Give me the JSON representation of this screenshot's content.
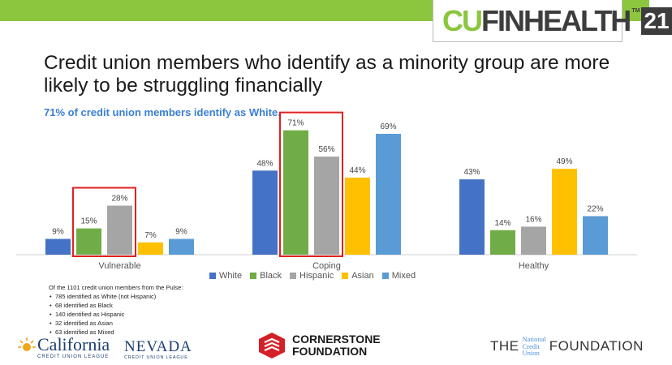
{
  "brand": {
    "cu": "CU",
    "fin": "FINHEALTH",
    "tm": "TM",
    "year": "21"
  },
  "title": "Credit union members who identify as a minority group are more likely to be struggling financially",
  "subtitle": "71% of credit union members identify as White.",
  "chart_data": {
    "type": "bar",
    "categories": [
      "Vulnerable",
      "Coping",
      "Healthy"
    ],
    "series": [
      {
        "name": "White",
        "color": "#4472c4",
        "values": [
          9,
          48,
          43
        ],
        "labels": [
          "9%",
          "48%",
          "43%"
        ]
      },
      {
        "name": "Black",
        "color": "#70ad47",
        "values": [
          15,
          71,
          14
        ],
        "labels": [
          "15%",
          "71%",
          "14%"
        ]
      },
      {
        "name": "Hispanic",
        "color": "#a5a5a5",
        "values": [
          28,
          56,
          16
        ],
        "labels": [
          "28%",
          "56%",
          "16%"
        ]
      },
      {
        "name": "Asian",
        "color": "#ffc000",
        "values": [
          7,
          44,
          49
        ],
        "labels": [
          "7%",
          "44%",
          "49%"
        ]
      },
      {
        "name": "Mixed",
        "color": "#5b9bd5",
        "values": [
          9,
          69,
          22
        ],
        "labels": [
          "9%",
          "69%",
          "22%"
        ]
      }
    ],
    "ylim": [
      0,
      75
    ],
    "grid": false,
    "legend": "bottom",
    "highlight": {
      "color": "#e02020",
      "groups": [
        [
          0,
          1,
          2
        ],
        [
          1,
          1,
          2
        ]
      ]
    }
  },
  "notes": {
    "intro": "Of the 1101 credit union members from the Pulse:",
    "items": [
      "785 identified as White (not Hispanic)",
      "68 identified as Black",
      "140 identified as Hispanic",
      "32 identified as Asian",
      "63 identified as Mixed"
    ]
  },
  "logos": {
    "california": {
      "name": "California",
      "sub": "CREDIT UNION LEAGUE"
    },
    "nevada": {
      "name": "NEVADA",
      "sub": "CREDIT UNION LEAGUE"
    },
    "cornerstone": {
      "line1": "CORNERSTONE",
      "line2": "FOUNDATION"
    },
    "ncu": {
      "the": "THE",
      "l1": "National",
      "l2": "Credit",
      "l3": "Union",
      "foundation": "FOUNDATION"
    }
  }
}
